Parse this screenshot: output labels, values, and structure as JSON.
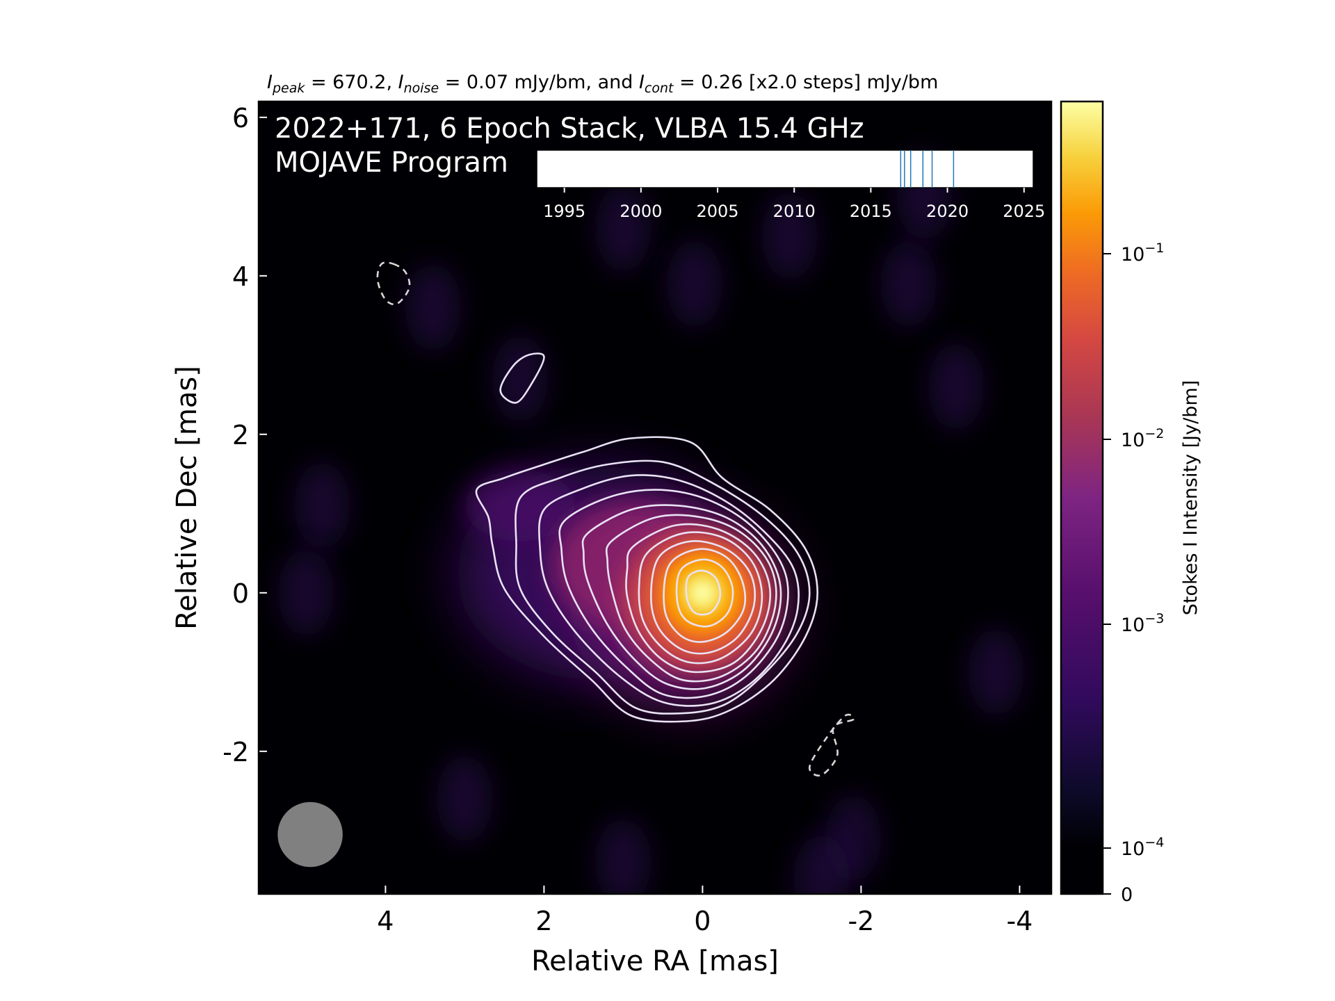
{
  "chart_data": {
    "type": "heatmap",
    "subtitle": {
      "peak_symbol": "I",
      "peak_sub": "peak",
      "peak_text": " = 670.2, ",
      "noise_symbol": "I",
      "noise_sub": "noise",
      "noise_text": " = 0.07 mJy/bm, and ",
      "cont_symbol": "I",
      "cont_sub": "cont",
      "cont_text": " = 0.26 [x2.0 steps] mJy/bm"
    },
    "title_line1": "2022+171, 6 Epoch Stack, VLBA 15.4 GHz",
    "title_line2": "MOJAVE Program",
    "xlabel": "Relative RA [mas]",
    "ylabel": "Relative Dec [mas]",
    "xlim": [
      5.6,
      -4.4
    ],
    "ylim": [
      -3.8,
      6.2
    ],
    "x_ticks": [
      {
        "v": 4,
        "label": "4"
      },
      {
        "v": 2,
        "label": "2"
      },
      {
        "v": 0,
        "label": "0"
      },
      {
        "v": -2,
        "label": "-2"
      },
      {
        "v": -4,
        "label": "-4"
      }
    ],
    "y_ticks": [
      {
        "v": 6,
        "label": "6"
      },
      {
        "v": 4,
        "label": "4"
      },
      {
        "v": 2,
        "label": "2"
      },
      {
        "v": 0,
        "label": "0"
      },
      {
        "v": -2,
        "label": "-2"
      }
    ],
    "colorbar": {
      "label": "Stokes I Intensity [Jy/bm]",
      "scale": "log",
      "colormap": "inferno",
      "max": 0.67,
      "ticks": [
        {
          "v": 0.1,
          "base": "10",
          "exp": "−1"
        },
        {
          "v": 0.01,
          "base": "10",
          "exp": "−2"
        },
        {
          "v": 0.001,
          "base": "10",
          "exp": "−3"
        },
        {
          "v": 0.0001,
          "base": "10",
          "exp": "−4"
        },
        {
          "v": 0,
          "base": "0",
          "exp": ""
        }
      ]
    },
    "core": {
      "ra": 0.0,
      "dec": 0.0,
      "peak_jy": 0.6702
    },
    "contours": {
      "base_jy": 0.00026,
      "step_factor": 2.0,
      "positive_color": "#e9e2f5",
      "negative_color": "#d8d8d8",
      "levels": [
        {
          "level": 0.00026,
          "points": [
            [
              2.85,
              1.3
            ],
            [
              2.5,
              1.45
            ],
            [
              2.0,
              1.62
            ],
            [
              1.5,
              1.78
            ],
            [
              0.9,
              1.95
            ],
            [
              0.15,
              1.9
            ],
            [
              -0.25,
              1.45
            ],
            [
              -0.85,
              1.05
            ],
            [
              -1.3,
              0.55
            ],
            [
              -1.45,
              0.0
            ],
            [
              -1.3,
              -0.55
            ],
            [
              -0.9,
              -1.1
            ],
            [
              -0.35,
              -1.48
            ],
            [
              0.2,
              -1.62
            ],
            [
              0.9,
              -1.55
            ],
            [
              1.4,
              -1.1
            ],
            [
              2.0,
              -0.55
            ],
            [
              2.5,
              0.05
            ],
            [
              2.65,
              0.6
            ],
            [
              2.7,
              0.95
            ]
          ]
        },
        {
          "level": 0.00052,
          "points": [
            [
              2.3,
              1.2
            ],
            [
              1.8,
              1.45
            ],
            [
              1.2,
              1.62
            ],
            [
              0.5,
              1.65
            ],
            [
              -0.1,
              1.4
            ],
            [
              -0.75,
              0.98
            ],
            [
              -1.2,
              0.5
            ],
            [
              -1.35,
              0.0
            ],
            [
              -1.2,
              -0.5
            ],
            [
              -0.8,
              -1.0
            ],
            [
              -0.3,
              -1.4
            ],
            [
              0.25,
              -1.52
            ],
            [
              0.85,
              -1.45
            ],
            [
              1.35,
              -1.0
            ],
            [
              1.9,
              -0.5
            ],
            [
              2.3,
              0.05
            ],
            [
              2.35,
              0.6
            ]
          ]
        },
        {
          "level": 0.00104,
          "points": [
            [
              2.0,
              1.05
            ],
            [
              1.5,
              1.32
            ],
            [
              0.9,
              1.48
            ],
            [
              0.3,
              1.42
            ],
            [
              -0.3,
              1.15
            ],
            [
              -0.8,
              0.75
            ],
            [
              -1.15,
              0.3
            ],
            [
              -1.2,
              -0.2
            ],
            [
              -1.0,
              -0.7
            ],
            [
              -0.6,
              -1.15
            ],
            [
              -0.1,
              -1.4
            ],
            [
              0.5,
              -1.38
            ],
            [
              1.05,
              -1.05
            ],
            [
              1.6,
              -0.5
            ],
            [
              1.95,
              0.05
            ],
            [
              2.05,
              0.55
            ]
          ]
        },
        {
          "level": 0.00208,
          "points": [
            [
              1.75,
              0.9
            ],
            [
              1.2,
              1.2
            ],
            [
              0.6,
              1.3
            ],
            [
              0.0,
              1.2
            ],
            [
              -0.55,
              0.9
            ],
            [
              -0.95,
              0.45
            ],
            [
              -1.08,
              0.0
            ],
            [
              -0.95,
              -0.55
            ],
            [
              -0.55,
              -1.05
            ],
            [
              -0.05,
              -1.3
            ],
            [
              0.5,
              -1.28
            ],
            [
              0.95,
              -0.95
            ],
            [
              1.4,
              -0.45
            ],
            [
              1.7,
              0.1
            ],
            [
              1.78,
              0.55
            ]
          ]
        },
        {
          "level": 0.00416,
          "points": [
            [
              1.45,
              0.75
            ],
            [
              0.9,
              1.05
            ],
            [
              0.3,
              1.1
            ],
            [
              -0.3,
              0.95
            ],
            [
              -0.75,
              0.6
            ],
            [
              -0.98,
              0.1
            ],
            [
              -0.9,
              -0.45
            ],
            [
              -0.55,
              -0.95
            ],
            [
              -0.05,
              -1.2
            ],
            [
              0.45,
              -1.15
            ],
            [
              0.85,
              -0.85
            ],
            [
              1.2,
              -0.4
            ],
            [
              1.45,
              0.15
            ],
            [
              1.5,
              0.5
            ]
          ]
        },
        {
          "level": 0.00832,
          "points": [
            [
              1.15,
              0.65
            ],
            [
              0.6,
              0.95
            ],
            [
              0.0,
              0.95
            ],
            [
              -0.5,
              0.75
            ],
            [
              -0.85,
              0.35
            ],
            [
              -0.92,
              -0.15
            ],
            [
              -0.7,
              -0.7
            ],
            [
              -0.25,
              -1.05
            ],
            [
              0.25,
              -1.1
            ],
            [
              0.65,
              -0.85
            ],
            [
              0.98,
              -0.45
            ],
            [
              1.15,
              0.05
            ],
            [
              1.2,
              0.4
            ]
          ]
        },
        {
          "level": 0.01664,
          "points": [
            [
              0.88,
              0.58
            ],
            [
              0.35,
              0.85
            ],
            [
              -0.2,
              0.8
            ],
            [
              -0.65,
              0.5
            ],
            [
              -0.85,
              0.05
            ],
            [
              -0.75,
              -0.45
            ],
            [
              -0.4,
              -0.88
            ],
            [
              0.1,
              -1.0
            ],
            [
              0.5,
              -0.85
            ],
            [
              0.8,
              -0.5
            ],
            [
              0.95,
              -0.05
            ],
            [
              0.95,
              0.3
            ]
          ]
        },
        {
          "level": 0.03328,
          "points": [
            [
              0.7,
              0.5
            ],
            [
              0.25,
              0.75
            ],
            [
              -0.25,
              0.7
            ],
            [
              -0.62,
              0.4
            ],
            [
              -0.75,
              -0.05
            ],
            [
              -0.62,
              -0.5
            ],
            [
              -0.25,
              -0.82
            ],
            [
              0.15,
              -0.88
            ],
            [
              0.5,
              -0.7
            ],
            [
              0.75,
              -0.35
            ],
            [
              0.8,
              0.1
            ]
          ]
        },
        {
          "level": 0.06656,
          "points": [
            [
              0.55,
              0.45
            ],
            [
              0.15,
              0.65
            ],
            [
              -0.3,
              0.55
            ],
            [
              -0.6,
              0.25
            ],
            [
              -0.65,
              -0.15
            ],
            [
              -0.45,
              -0.55
            ],
            [
              -0.1,
              -0.75
            ],
            [
              0.25,
              -0.72
            ],
            [
              0.55,
              -0.45
            ],
            [
              0.65,
              -0.05
            ]
          ]
        },
        {
          "level": 0.13312,
          "points": [
            [
              0.42,
              0.35
            ],
            [
              0.05,
              0.55
            ],
            [
              -0.3,
              0.45
            ],
            [
              -0.5,
              0.15
            ],
            [
              -0.52,
              -0.2
            ],
            [
              -0.3,
              -0.5
            ],
            [
              0.02,
              -0.62
            ],
            [
              0.3,
              -0.52
            ],
            [
              0.48,
              -0.2
            ]
          ]
        },
        {
          "level": 0.26624,
          "points": [
            [
              0.28,
              0.28
            ],
            [
              0.0,
              0.42
            ],
            [
              -0.25,
              0.32
            ],
            [
              -0.38,
              0.05
            ],
            [
              -0.32,
              -0.25
            ],
            [
              -0.08,
              -0.42
            ],
            [
              0.2,
              -0.35
            ],
            [
              0.32,
              -0.1
            ]
          ]
        },
        {
          "level": 0.53248,
          "points": [
            [
              0.18,
              0.2
            ],
            [
              0.0,
              0.28
            ],
            [
              -0.17,
              0.18
            ],
            [
              -0.22,
              -0.05
            ],
            [
              -0.1,
              -0.25
            ],
            [
              0.1,
              -0.25
            ],
            [
              0.2,
              -0.05
            ]
          ]
        },
        {
          "level": 0.00026,
          "points": [
            [
              2.2,
              3.0
            ],
            [
              2.4,
              2.85
            ],
            [
              2.55,
              2.55
            ],
            [
              2.35,
              2.4
            ],
            [
              2.15,
              2.65
            ],
            [
              2.0,
              2.98
            ]
          ]
        },
        {
          "level": -0.00026,
          "points": [
            [
              3.9,
              4.15
            ],
            [
              3.75,
              4.05
            ],
            [
              3.7,
              3.85
            ],
            [
              3.85,
              3.65
            ],
            [
              4.0,
              3.7
            ],
            [
              4.1,
              3.95
            ],
            [
              4.05,
              4.15
            ]
          ]
        },
        {
          "level": -0.00026,
          "points": [
            [
              -1.9,
              -1.6
            ],
            [
              -1.65,
              -1.7
            ],
            [
              -1.7,
              -2.05
            ],
            [
              -1.5,
              -2.3
            ],
            [
              -1.35,
              -2.2
            ],
            [
              -1.55,
              -1.85
            ],
            [
              -1.8,
              -1.55
            ]
          ]
        }
      ]
    },
    "beam": {
      "ra": 4.95,
      "dec": -3.05,
      "major_mas": 0.82,
      "minor_mas": 0.82,
      "pa_deg": 0
    },
    "timeline": {
      "xlim": [
        1993.2,
        2025.6
      ],
      "ticks": [
        {
          "v": 1995,
          "label": "1995"
        },
        {
          "v": 2000,
          "label": "2000"
        },
        {
          "v": 2005,
          "label": "2005"
        },
        {
          "v": 2010,
          "label": "2010"
        },
        {
          "v": 2015,
          "label": "2015"
        },
        {
          "v": 2020,
          "label": "2020"
        },
        {
          "v": 2025,
          "label": "2025"
        }
      ],
      "epochs": [
        2016.95,
        2017.2,
        2017.6,
        2018.4,
        2019.0,
        2020.4
      ],
      "epoch_color": "#1f77b4"
    }
  }
}
